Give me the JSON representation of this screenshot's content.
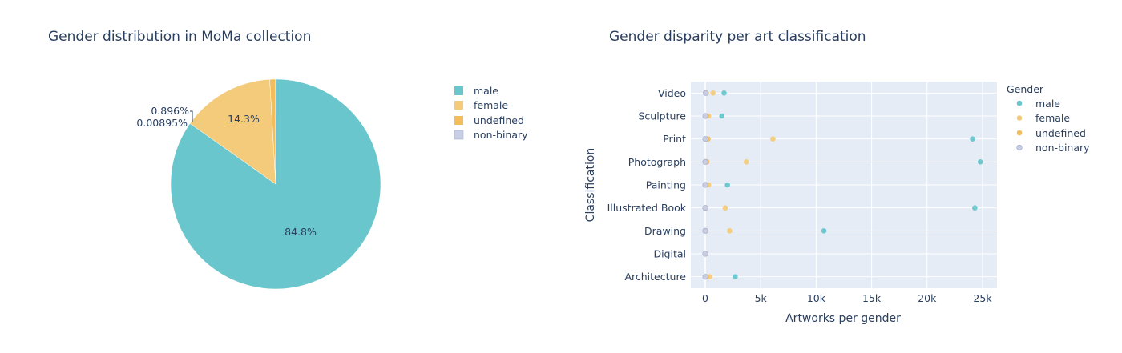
{
  "colors": {
    "male": "#69c6cc",
    "female": "#f4cb7a",
    "undefined": "#f1bd5d",
    "non_binary": "#c7cee6",
    "plot_bg": "#e5ecf6",
    "grid": "#ffffff",
    "text": "#2a3f5f"
  },
  "pie_chart": {
    "title": "Gender distribution in MoMa collection",
    "legend": [
      "male",
      "female",
      "undefined",
      "non-binary"
    ],
    "chart_data": {
      "type": "pie",
      "labels": [
        "male",
        "female",
        "undefined",
        "non-binary"
      ],
      "values": [
        84.8,
        14.3,
        0.896,
        0.00895
      ],
      "text_labels": [
        "84.8%",
        "14.3%",
        "0.896%",
        "0.00895%"
      ]
    }
  },
  "scatter_chart": {
    "title": "Gender disparity per art classification",
    "legend_title": "Gender",
    "legend": [
      "male",
      "female",
      "undefined",
      "non-binary"
    ],
    "x_title": "Artworks per gender",
    "y_title": "Classification",
    "x_tick_labels": [
      "0",
      "5k",
      "10k",
      "15k",
      "20k",
      "25k"
    ],
    "chart_data": {
      "type": "scatter",
      "categories": [
        "Architecture",
        "Digital",
        "Drawing",
        "Illustrated Book",
        "Painting",
        "Photograph",
        "Print",
        "Sculpture",
        "Video"
      ],
      "x_ticks": [
        0,
        5000,
        10000,
        15000,
        20000,
        25000
      ],
      "xlim": [
        -1300,
        26300
      ],
      "series": [
        {
          "name": "male",
          "values": [
            2700,
            0,
            10700,
            24300,
            2000,
            24800,
            24100,
            1500,
            1700
          ]
        },
        {
          "name": "female",
          "values": [
            400,
            50,
            2200,
            1800,
            300,
            3700,
            6100,
            300,
            700
          ]
        },
        {
          "name": "undefined",
          "values": [
            100,
            0,
            50,
            50,
            50,
            150,
            250,
            100,
            100
          ]
        },
        {
          "name": "non-binary",
          "values": [
            10,
            0,
            5,
            5,
            5,
            10,
            10,
            10,
            50
          ]
        }
      ]
    }
  }
}
